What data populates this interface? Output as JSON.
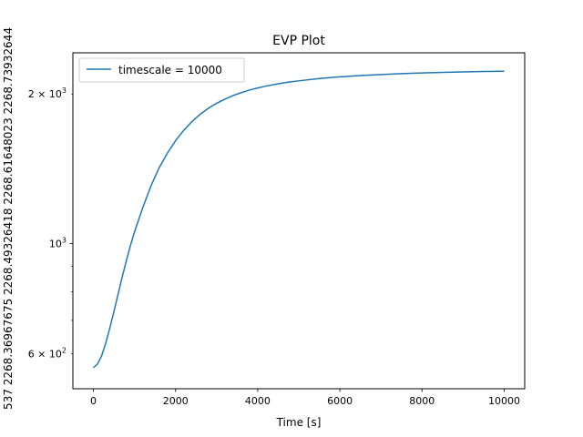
{
  "chart_data": {
    "type": "line",
    "title": "EVP Plot",
    "xlabel": "Time [s]",
    "ylabel": "537 2268.36967675 2268.49326418 2268.61648023 2268.73932644",
    "xlim": [
      -500,
      10500
    ],
    "ylim": [
      510,
      2420
    ],
    "yscale": "log",
    "grid": false,
    "legend_position": "upper-left",
    "x_ticks": [
      {
        "value": 0,
        "label": "0"
      },
      {
        "value": 2000,
        "label": "2000"
      },
      {
        "value": 4000,
        "label": "4000"
      },
      {
        "value": 6000,
        "label": "6000"
      },
      {
        "value": 8000,
        "label": "8000"
      },
      {
        "value": 10000,
        "label": "10000"
      }
    ],
    "y_major_ticks": [
      {
        "value": 1000,
        "base": "10",
        "exp": "3",
        "coef": ""
      }
    ],
    "y_minor_labeled_ticks": [
      {
        "value": 600,
        "base": "10",
        "exp": "2",
        "coef": "6 × "
      },
      {
        "value": 2000,
        "base": "10",
        "exp": "3",
        "coef": "2 × "
      }
    ],
    "y_minor_unlabeled_ticks": [
      700,
      800,
      900
    ],
    "series": [
      {
        "name": "timescale = 10000",
        "color": "#1f77b4",
        "x": [
          0,
          100,
          200,
          300,
          400,
          500,
          600,
          700,
          800,
          900,
          1000,
          1200,
          1400,
          1600,
          1800,
          2000,
          2200,
          2400,
          2600,
          2800,
          3000,
          3200,
          3400,
          3600,
          3800,
          4000,
          4200,
          4400,
          4600,
          4800,
          5000,
          5500,
          6000,
          6500,
          7000,
          7500,
          8000,
          8500,
          9000,
          9500,
          10000
        ],
        "y": [
          562,
          572,
          594,
          630,
          676,
          730,
          790,
          856,
          922,
          990,
          1055,
          1180,
          1305,
          1420,
          1520,
          1610,
          1690,
          1760,
          1820,
          1872,
          1915,
          1952,
          1985,
          2012,
          2036,
          2056,
          2074,
          2089,
          2103,
          2115,
          2125,
          2148,
          2165,
          2178,
          2188,
          2197,
          2204,
          2210,
          2215,
          2219,
          2222
        ]
      }
    ]
  }
}
